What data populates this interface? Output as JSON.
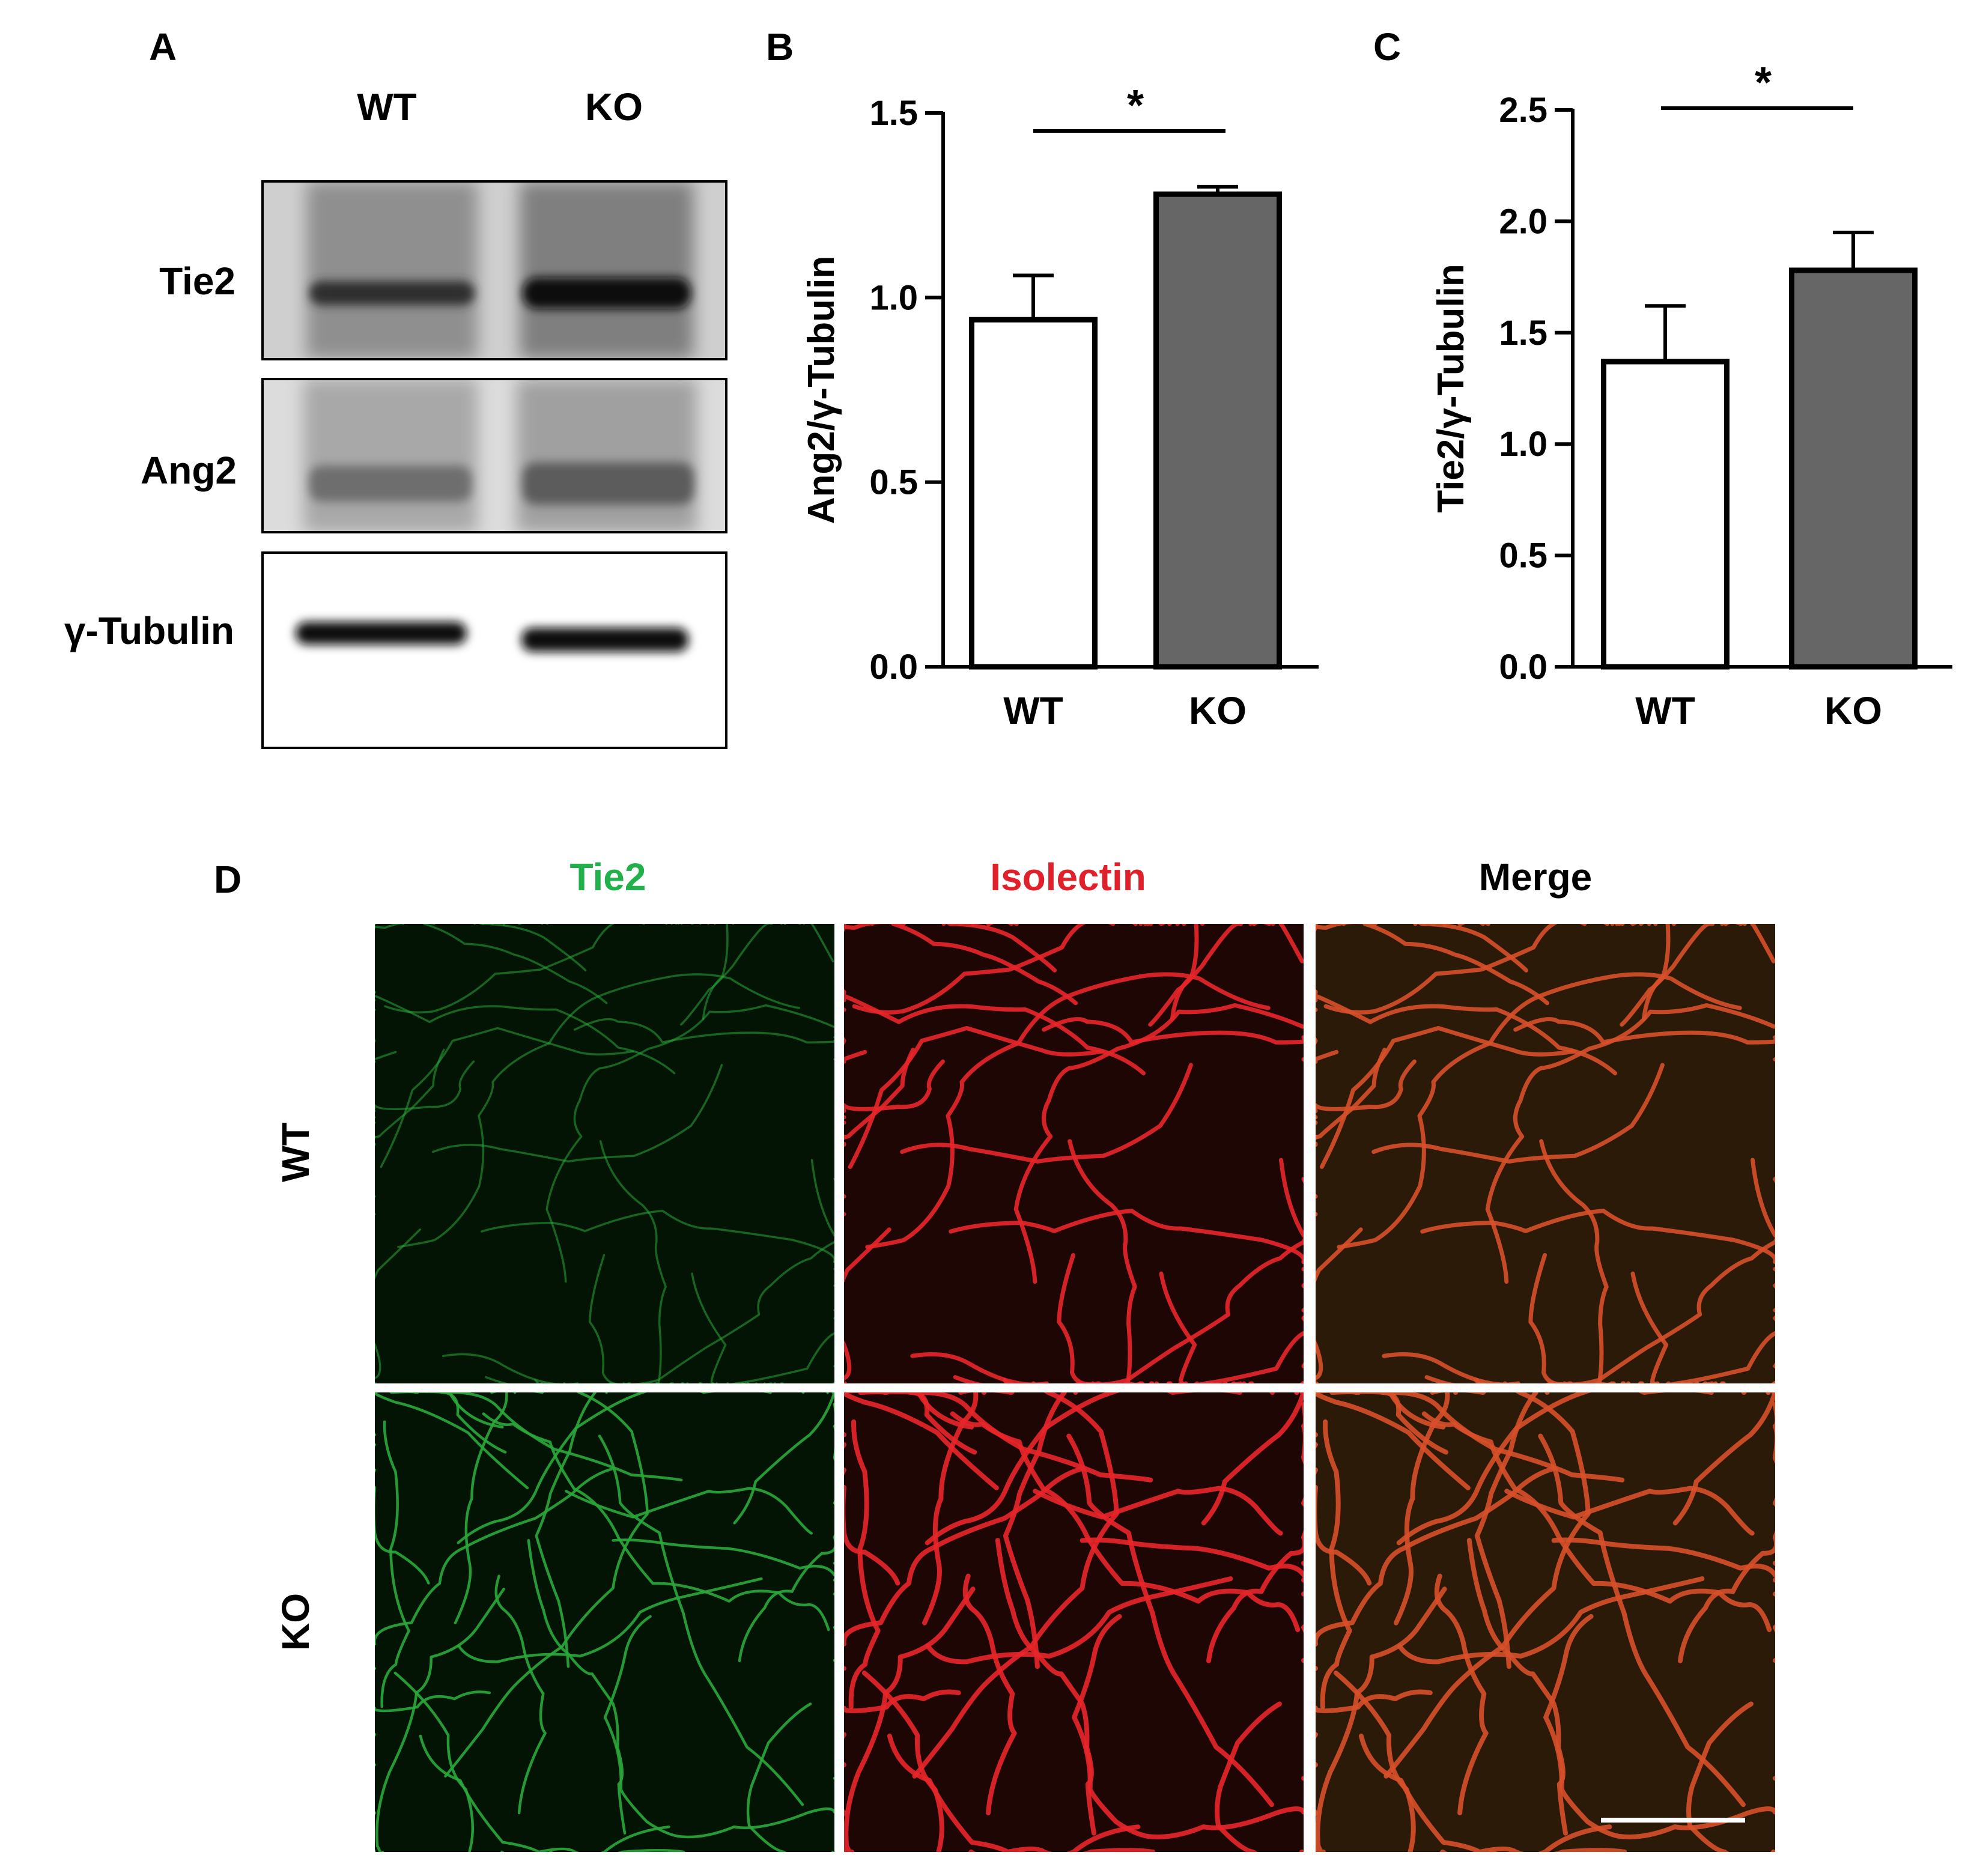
{
  "panel_labels": {
    "a": "A",
    "b": "B",
    "c": "C",
    "d": "D"
  },
  "western_blot": {
    "lanes": [
      "WT",
      "KO"
    ],
    "rows": [
      "Tie2",
      "Ang2",
      "γ-Tubulin"
    ]
  },
  "chart_data": [
    {
      "type": "bar",
      "panel": "B",
      "categories": [
        "WT",
        "KO"
      ],
      "values": [
        0.94,
        1.28
      ],
      "errors": [
        0.12,
        0.02
      ],
      "bar_colors": [
        "#ffffff",
        "#666666"
      ],
      "ylabel": "Ang2/γ-Tubulin",
      "ylim": [
        0,
        1.5
      ],
      "yticks": [
        "0.0",
        "0.5",
        "1.0",
        "1.5"
      ],
      "significance": "*"
    },
    {
      "type": "bar",
      "panel": "C",
      "categories": [
        "WT",
        "KO"
      ],
      "values": [
        1.37,
        1.78
      ],
      "errors": [
        0.25,
        0.17
      ],
      "bar_colors": [
        "#ffffff",
        "#666666"
      ],
      "ylabel": "Tie2/γ-Tubulin",
      "ylim": [
        0,
        2.5
      ],
      "yticks": [
        "0.0",
        "0.5",
        "1.0",
        "1.5",
        "2.0",
        "2.5"
      ],
      "significance": "*"
    }
  ],
  "microscopy": {
    "columns": [
      {
        "label": "Tie2",
        "color": "#22b04b"
      },
      {
        "label": "Isolectin",
        "color": "#e0202a"
      },
      {
        "label": "Merge",
        "color": "#000000"
      }
    ],
    "rows": [
      "WT",
      "KO"
    ],
    "channel_colors": {
      "green": "#2aa83a",
      "red": "#e8262a",
      "merge": "#d8502a"
    }
  }
}
